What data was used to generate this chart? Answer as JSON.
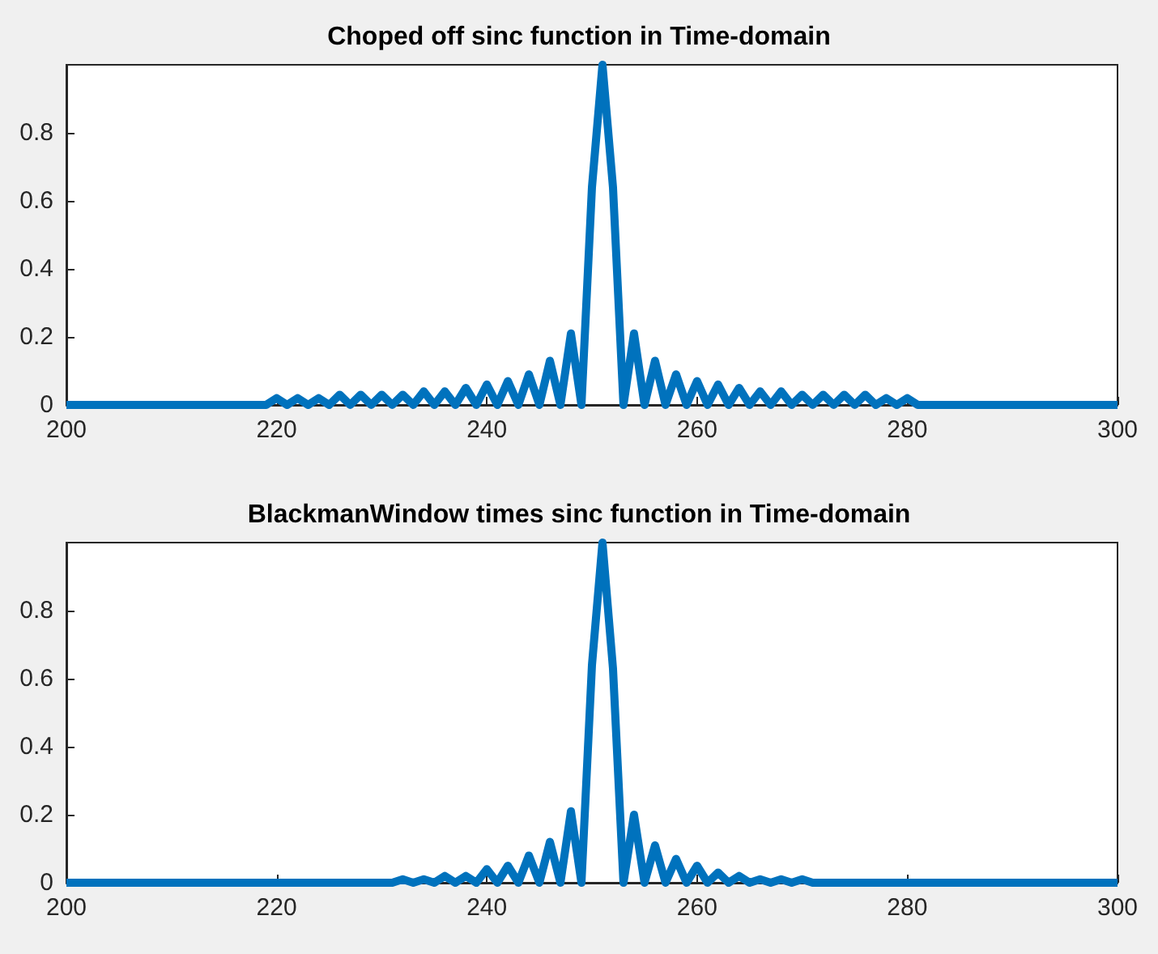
{
  "chart_data": [
    {
      "type": "line",
      "title": "Choped off sinc function in Time-domain",
      "x": [
        200,
        219,
        220,
        221,
        222,
        223,
        224,
        225,
        226,
        227,
        228,
        229,
        230,
        231,
        232,
        233,
        234,
        235,
        236,
        237,
        238,
        239,
        240,
        241,
        242,
        243,
        244,
        245,
        246,
        247,
        248,
        249,
        250,
        251,
        252,
        253,
        254,
        255,
        256,
        257,
        258,
        259,
        260,
        261,
        262,
        263,
        264,
        265,
        266,
        267,
        268,
        269,
        270,
        271,
        272,
        273,
        274,
        275,
        276,
        277,
        278,
        279,
        280,
        281,
        300
      ],
      "series": [
        {
          "color": "#0072bd",
          "values": [
            0,
            0,
            0.02,
            0,
            0.02,
            0,
            0.02,
            0,
            0.03,
            0,
            0.03,
            0,
            0.03,
            0,
            0.03,
            0,
            0.04,
            0,
            0.04,
            0,
            0.05,
            0,
            0.06,
            0,
            0.07,
            0,
            0.09,
            0,
            0.13,
            0,
            0.21,
            0,
            0.64,
            1,
            0.64,
            0,
            0.21,
            0,
            0.13,
            0,
            0.09,
            0,
            0.07,
            0,
            0.06,
            0,
            0.05,
            0,
            0.04,
            0,
            0.04,
            0,
            0.03,
            0,
            0.03,
            0,
            0.03,
            0,
            0.03,
            0,
            0.02,
            0,
            0.02,
            0,
            0
          ]
        }
      ],
      "xlim": [
        200,
        300
      ],
      "xticks": [
        200,
        220,
        240,
        260,
        280,
        300
      ],
      "ylim": [
        0,
        1
      ],
      "yticks": [
        0,
        0.2,
        0.4,
        0.6,
        0.8
      ]
    },
    {
      "type": "line",
      "title": "BlackmanWindow times sinc function in Time-domain",
      "x": [
        200,
        220,
        221,
        222,
        223,
        224,
        225,
        226,
        227,
        228,
        229,
        230,
        231,
        232,
        233,
        234,
        235,
        236,
        237,
        238,
        239,
        240,
        241,
        242,
        243,
        244,
        245,
        246,
        247,
        248,
        249,
        250,
        251,
        252,
        253,
        254,
        255,
        256,
        257,
        258,
        259,
        260,
        261,
        262,
        263,
        264,
        265,
        266,
        267,
        268,
        269,
        270,
        271,
        272,
        273,
        274,
        275,
        276,
        277,
        278,
        279,
        280,
        281,
        300
      ],
      "series": [
        {
          "color": "#0072bd",
          "values": [
            0,
            0,
            0,
            0,
            0,
            0,
            0,
            0,
            0,
            0,
            0,
            0,
            0,
            0.01,
            0,
            0.01,
            0,
            0.02,
            0,
            0.02,
            0,
            0.04,
            0,
            0.05,
            0,
            0.08,
            0,
            0.12,
            0,
            0.21,
            0,
            0.64,
            1,
            0.63,
            0,
            0.2,
            0,
            0.11,
            0,
            0.07,
            0,
            0.05,
            0,
            0.03,
            0,
            0.02,
            0,
            0.01,
            0,
            0.01,
            0,
            0.01,
            0,
            0,
            0,
            0,
            0,
            0,
            0,
            0,
            0,
            0,
            0,
            0
          ]
        }
      ],
      "xlim": [
        200,
        300
      ],
      "xticks": [
        200,
        220,
        240,
        260,
        280,
        300
      ],
      "ylim": [
        0,
        1
      ],
      "yticks": [
        0,
        0.2,
        0.4,
        0.6,
        0.8
      ]
    }
  ]
}
